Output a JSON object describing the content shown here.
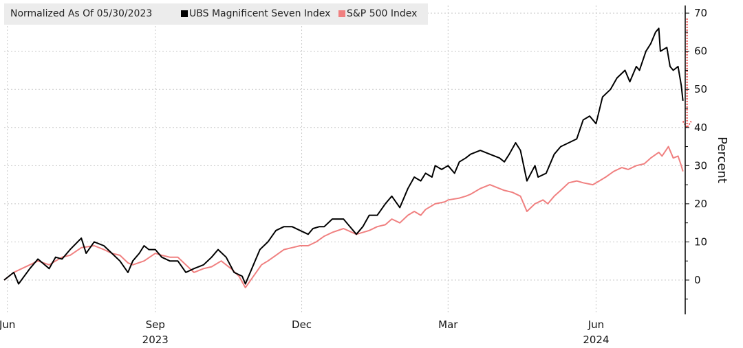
{
  "chart_data": {
    "type": "line",
    "title": "",
    "legend_note": "Normalized As Of 05/30/2023",
    "ylabel": "Percent",
    "ylim": [
      -9,
      72
    ],
    "yticks": [
      0,
      10,
      20,
      30,
      40,
      50,
      60,
      70
    ],
    "grid": true,
    "legend_position": "top-left",
    "x_tick_labels": [
      {
        "date": "2023-06-01",
        "label": "Jun",
        "year": ""
      },
      {
        "date": "2023-09-01",
        "label": "Sep",
        "year": "2023"
      },
      {
        "date": "2023-12-01",
        "label": "Dec",
        "year": ""
      },
      {
        "date": "2024-03-01",
        "label": "Mar",
        "year": ""
      },
      {
        "date": "2024-06-01",
        "label": "Jun",
        "year": "2024"
      }
    ],
    "x_range": [
      "2023-05-30",
      "2024-07-26"
    ],
    "annotation": {
      "type": "dotted-arrow",
      "date": "2024-07-25",
      "from": 65,
      "to": 40,
      "color": "#e8413e"
    },
    "series": [
      {
        "name": "UBS Magnificent Seven Index",
        "color": "#000000",
        "points": [
          [
            "2023-05-30",
            0
          ],
          [
            "2023-06-05",
            2
          ],
          [
            "2023-06-08",
            -1
          ],
          [
            "2023-06-15",
            3
          ],
          [
            "2023-06-20",
            5.5
          ],
          [
            "2023-06-27",
            3
          ],
          [
            "2023-07-01",
            6
          ],
          [
            "2023-07-05",
            5.5
          ],
          [
            "2023-07-10",
            8
          ],
          [
            "2023-07-17",
            11
          ],
          [
            "2023-07-20",
            7
          ],
          [
            "2023-07-25",
            10
          ],
          [
            "2023-07-31",
            9
          ],
          [
            "2023-08-05",
            7
          ],
          [
            "2023-08-10",
            5
          ],
          [
            "2023-08-15",
            2
          ],
          [
            "2023-08-18",
            5
          ],
          [
            "2023-08-22",
            7
          ],
          [
            "2023-08-25",
            9
          ],
          [
            "2023-08-28",
            8
          ],
          [
            "2023-09-01",
            8
          ],
          [
            "2023-09-05",
            6
          ],
          [
            "2023-09-10",
            5
          ],
          [
            "2023-09-15",
            5
          ],
          [
            "2023-09-20",
            2
          ],
          [
            "2023-09-25",
            3
          ],
          [
            "2023-10-01",
            4
          ],
          [
            "2023-10-06",
            6
          ],
          [
            "2023-10-10",
            8
          ],
          [
            "2023-10-15",
            6
          ],
          [
            "2023-10-20",
            2
          ],
          [
            "2023-10-25",
            1
          ],
          [
            "2023-10-27",
            -1
          ],
          [
            "2023-11-01",
            4
          ],
          [
            "2023-11-05",
            8
          ],
          [
            "2023-11-10",
            10
          ],
          [
            "2023-11-15",
            13
          ],
          [
            "2023-11-20",
            14
          ],
          [
            "2023-11-25",
            14
          ],
          [
            "2023-11-30",
            13
          ],
          [
            "2023-12-05",
            12
          ],
          [
            "2023-12-08",
            13.5
          ],
          [
            "2023-12-12",
            14
          ],
          [
            "2023-12-15",
            14
          ],
          [
            "2023-12-20",
            16
          ],
          [
            "2023-12-27",
            16
          ],
          [
            "2024-01-04",
            12
          ],
          [
            "2024-01-08",
            14
          ],
          [
            "2024-01-12",
            17
          ],
          [
            "2024-01-17",
            17
          ],
          [
            "2024-01-22",
            20
          ],
          [
            "2024-01-26",
            22
          ],
          [
            "2024-01-31",
            19
          ],
          [
            "2024-02-05",
            24
          ],
          [
            "2024-02-09",
            27
          ],
          [
            "2024-02-13",
            26
          ],
          [
            "2024-02-16",
            28
          ],
          [
            "2024-02-20",
            27
          ],
          [
            "2024-02-22",
            30
          ],
          [
            "2024-02-26",
            29
          ],
          [
            "2024-03-01",
            30
          ],
          [
            "2024-03-05",
            28
          ],
          [
            "2024-03-08",
            31
          ],
          [
            "2024-03-12",
            32
          ],
          [
            "2024-03-15",
            33
          ],
          [
            "2024-03-21",
            34
          ],
          [
            "2024-03-27",
            33
          ],
          [
            "2024-04-02",
            32
          ],
          [
            "2024-04-05",
            31
          ],
          [
            "2024-04-08",
            33
          ],
          [
            "2024-04-12",
            36
          ],
          [
            "2024-04-15",
            34
          ],
          [
            "2024-04-19",
            26
          ],
          [
            "2024-04-24",
            30
          ],
          [
            "2024-04-26",
            27
          ],
          [
            "2024-05-01",
            28
          ],
          [
            "2024-05-06",
            33
          ],
          [
            "2024-05-10",
            35
          ],
          [
            "2024-05-15",
            36
          ],
          [
            "2024-05-20",
            37
          ],
          [
            "2024-05-24",
            42
          ],
          [
            "2024-05-28",
            43
          ],
          [
            "2024-06-01",
            41
          ],
          [
            "2024-06-05",
            48
          ],
          [
            "2024-06-10",
            50
          ],
          [
            "2024-06-14",
            53
          ],
          [
            "2024-06-19",
            55
          ],
          [
            "2024-06-22",
            52
          ],
          [
            "2024-06-26",
            56
          ],
          [
            "2024-06-28",
            55
          ],
          [
            "2024-07-02",
            60
          ],
          [
            "2024-07-05",
            62
          ],
          [
            "2024-07-08",
            65
          ],
          [
            "2024-07-10",
            66
          ],
          [
            "2024-07-11",
            60
          ],
          [
            "2024-07-15",
            61
          ],
          [
            "2024-07-17",
            56
          ],
          [
            "2024-07-19",
            55
          ],
          [
            "2024-07-22",
            56
          ],
          [
            "2024-07-24",
            51
          ],
          [
            "2024-07-25",
            47
          ]
        ]
      },
      {
        "name": "S&P 500 Index",
        "color": "#f08080",
        "points": [
          [
            "2023-05-30",
            0
          ],
          [
            "2023-06-05",
            2
          ],
          [
            "2023-06-10",
            3
          ],
          [
            "2023-06-15",
            4
          ],
          [
            "2023-06-20",
            5
          ],
          [
            "2023-06-27",
            4
          ],
          [
            "2023-07-01",
            5
          ],
          [
            "2023-07-05",
            6
          ],
          [
            "2023-07-10",
            6.5
          ],
          [
            "2023-07-17",
            8.5
          ],
          [
            "2023-07-25",
            9
          ],
          [
            "2023-07-31",
            8
          ],
          [
            "2023-08-05",
            7
          ],
          [
            "2023-08-10",
            6.5
          ],
          [
            "2023-08-15",
            4.5
          ],
          [
            "2023-08-18",
            4
          ],
          [
            "2023-08-25",
            5
          ],
          [
            "2023-09-01",
            7
          ],
          [
            "2023-09-05",
            6.5
          ],
          [
            "2023-09-10",
            6
          ],
          [
            "2023-09-15",
            6
          ],
          [
            "2023-09-20",
            4
          ],
          [
            "2023-09-25",
            2
          ],
          [
            "2023-10-01",
            3
          ],
          [
            "2023-10-06",
            3.5
          ],
          [
            "2023-10-12",
            5
          ],
          [
            "2023-10-18",
            3
          ],
          [
            "2023-10-23",
            1
          ],
          [
            "2023-10-27",
            -2
          ],
          [
            "2023-11-01",
            1
          ],
          [
            "2023-11-06",
            4
          ],
          [
            "2023-11-10",
            5
          ],
          [
            "2023-11-15",
            6.5
          ],
          [
            "2023-11-20",
            8
          ],
          [
            "2023-11-25",
            8.5
          ],
          [
            "2023-11-30",
            9
          ],
          [
            "2023-12-05",
            9
          ],
          [
            "2023-12-10",
            10
          ],
          [
            "2023-12-15",
            11.5
          ],
          [
            "2023-12-20",
            12.5
          ],
          [
            "2023-12-27",
            13.5
          ],
          [
            "2024-01-04",
            12
          ],
          [
            "2024-01-08",
            12.5
          ],
          [
            "2024-01-12",
            13
          ],
          [
            "2024-01-17",
            14
          ],
          [
            "2024-01-22",
            14.5
          ],
          [
            "2024-01-26",
            16
          ],
          [
            "2024-01-31",
            15
          ],
          [
            "2024-02-05",
            17
          ],
          [
            "2024-02-09",
            18
          ],
          [
            "2024-02-13",
            17
          ],
          [
            "2024-02-16",
            18.5
          ],
          [
            "2024-02-22",
            20
          ],
          [
            "2024-02-28",
            20.5
          ],
          [
            "2024-03-01",
            21
          ],
          [
            "2024-03-08",
            21.5
          ],
          [
            "2024-03-12",
            22
          ],
          [
            "2024-03-15",
            22.5
          ],
          [
            "2024-03-21",
            24
          ],
          [
            "2024-03-27",
            25
          ],
          [
            "2024-04-02",
            24
          ],
          [
            "2024-04-05",
            23.5
          ],
          [
            "2024-04-10",
            23
          ],
          [
            "2024-04-15",
            22
          ],
          [
            "2024-04-19",
            18
          ],
          [
            "2024-04-24",
            20
          ],
          [
            "2024-04-29",
            21
          ],
          [
            "2024-05-02",
            20
          ],
          [
            "2024-05-06",
            22
          ],
          [
            "2024-05-10",
            23.5
          ],
          [
            "2024-05-15",
            25.5
          ],
          [
            "2024-05-20",
            26
          ],
          [
            "2024-05-24",
            25.5
          ],
          [
            "2024-05-30",
            25
          ],
          [
            "2024-06-03",
            26
          ],
          [
            "2024-06-07",
            27
          ],
          [
            "2024-06-12",
            28.5
          ],
          [
            "2024-06-17",
            29.5
          ],
          [
            "2024-06-21",
            29
          ],
          [
            "2024-06-26",
            30
          ],
          [
            "2024-07-01",
            30.5
          ],
          [
            "2024-07-05",
            32
          ],
          [
            "2024-07-10",
            33.5
          ],
          [
            "2024-07-12",
            32.5
          ],
          [
            "2024-07-16",
            35
          ],
          [
            "2024-07-19",
            32
          ],
          [
            "2024-07-22",
            32.5
          ],
          [
            "2024-07-24",
            30
          ],
          [
            "2024-07-25",
            28.5
          ]
        ]
      }
    ]
  }
}
